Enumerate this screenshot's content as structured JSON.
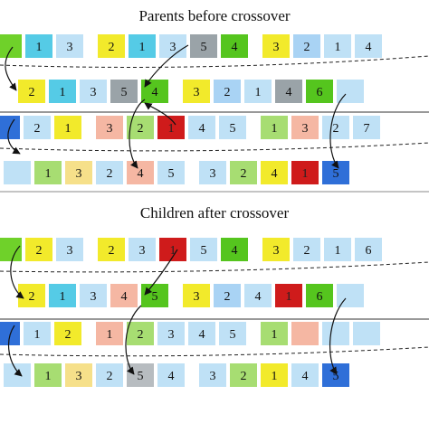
{
  "colors": {
    "1": "#55cbe6",
    "2": "#f2ea2b",
    "3": "#a9d3f4",
    "4": "#6fd12a",
    "5": "#9aa3a8",
    "6": "#75d535",
    "7": "#2e6fe0",
    "hl1": "#d61f1f",
    "hl2": "#f2b39f",
    "hl3": "#a9b1b7",
    "lightblue": "#bfe1f6",
    "lightgreen": "#a7dd72",
    "lightyellow": "#f6e08a",
    "salmon": "#f5b7a3",
    "gray": "#b7bcc0",
    "green": "#55c51e",
    "red": "#cf1b1b",
    "blue": "#2f6fd8",
    "pale": "#c9e7f7",
    "mustard": "#e2d84a"
  },
  "sections": [
    {
      "id": "parents",
      "title": "Parents before crossover",
      "rows": [
        {
          "cells": [
            {
              "label": "",
              "color": "#6fd12a"
            },
            {
              "label": "1",
              "color": "#55cbe6"
            },
            {
              "label": "3",
              "color": "#bfe1f6"
            },
            {
              "label": "",
              "color": "#ffffff"
            },
            {
              "label": "2",
              "color": "#f2ea2b"
            },
            {
              "label": "1",
              "color": "#55cbe6"
            },
            {
              "label": "3",
              "color": "#bfe1f6"
            },
            {
              "label": "5",
              "color": "#9aa3a8"
            },
            {
              "label": "4",
              "color": "#55c51e"
            },
            {
              "label": "",
              "color": "#ffffff"
            },
            {
              "label": "3",
              "color": "#f2ea2b"
            },
            {
              "label": "2",
              "color": "#a9d3f4"
            },
            {
              "label": "1",
              "color": "#bfe1f6"
            },
            {
              "label": "4",
              "color": "#bfe1f6"
            }
          ]
        },
        {
          "cells": [
            {
              "label": "2",
              "color": "#f2ea2b"
            },
            {
              "label": "1",
              "color": "#55cbe6"
            },
            {
              "label": "3",
              "color": "#bfe1f6"
            },
            {
              "label": "5",
              "color": "#9aa3a8"
            },
            {
              "label": "4",
              "color": "#55c51e"
            },
            {
              "label": "",
              "color": "#ffffff"
            },
            {
              "label": "3",
              "color": "#f2ea2b"
            },
            {
              "label": "2",
              "color": "#a9d3f4"
            },
            {
              "label": "1",
              "color": "#bfe1f6"
            },
            {
              "label": "4",
              "color": "#9aa3a8"
            },
            {
              "label": "6",
              "color": "#55c51e"
            },
            {
              "label": "",
              "color": "#bfe1f6"
            }
          ]
        },
        {
          "cells": [
            {
              "label": "",
              "color": "#2f6fd8"
            },
            {
              "label": "2",
              "color": "#bfe1f6"
            },
            {
              "label": "1",
              "color": "#f2ea2b"
            },
            {
              "label": "",
              "color": "#ffffff"
            },
            {
              "label": "3",
              "color": "#f5b7a3"
            },
            {
              "label": "2",
              "color": "#a7dd72"
            },
            {
              "label": "1",
              "color": "#cf1b1b"
            },
            {
              "label": "4",
              "color": "#bfe1f6"
            },
            {
              "label": "5",
              "color": "#bfe1f6"
            },
            {
              "label": "",
              "color": "#ffffff"
            },
            {
              "label": "1",
              "color": "#a7dd72"
            },
            {
              "label": "3",
              "color": "#f5b7a3"
            },
            {
              "label": "2",
              "color": "#bfe1f6"
            },
            {
              "label": "7",
              "color": "#bfe1f6"
            }
          ]
        },
        {
          "cells": [
            {
              "label": "",
              "color": "#bfe1f6"
            },
            {
              "label": "1",
              "color": "#a7dd72"
            },
            {
              "label": "3",
              "color": "#f6e08a"
            },
            {
              "label": "2",
              "color": "#bfe1f6"
            },
            {
              "label": "4",
              "color": "#f5b7a3"
            },
            {
              "label": "5",
              "color": "#bfe1f6"
            },
            {
              "label": "",
              "color": "#ffffff"
            },
            {
              "label": "3",
              "color": "#bfe1f6"
            },
            {
              "label": "2",
              "color": "#a7dd72"
            },
            {
              "label": "4",
              "color": "#f2ea2b"
            },
            {
              "label": "1",
              "color": "#cf1b1b"
            },
            {
              "label": "5",
              "color": "#2f6fd8"
            },
            {
              "label": "",
              "color": "#ffffff"
            }
          ]
        }
      ]
    },
    {
      "id": "children",
      "title": "Children after crossover",
      "rows": [
        {
          "cells": [
            {
              "label": "",
              "color": "#6fd12a"
            },
            {
              "label": "2",
              "color": "#f2ea2b"
            },
            {
              "label": "3",
              "color": "#bfe1f6"
            },
            {
              "label": "",
              "color": "#ffffff"
            },
            {
              "label": "2",
              "color": "#f2ea2b"
            },
            {
              "label": "3",
              "color": "#bfe1f6"
            },
            {
              "label": "1",
              "color": "#cf1b1b"
            },
            {
              "label": "5",
              "color": "#bfe1f6"
            },
            {
              "label": "4",
              "color": "#55c51e"
            },
            {
              "label": "",
              "color": "#ffffff"
            },
            {
              "label": "3",
              "color": "#f2ea2b"
            },
            {
              "label": "2",
              "color": "#bfe1f6"
            },
            {
              "label": "1",
              "color": "#bfe1f6"
            },
            {
              "label": "6",
              "color": "#bfe1f6"
            }
          ]
        },
        {
          "cells": [
            {
              "label": "2",
              "color": "#f2ea2b"
            },
            {
              "label": "1",
              "color": "#55cbe6"
            },
            {
              "label": "3",
              "color": "#bfe1f6"
            },
            {
              "label": "4",
              "color": "#f5b7a3"
            },
            {
              "label": "5",
              "color": "#55c51e"
            },
            {
              "label": "",
              "color": "#ffffff"
            },
            {
              "label": "3",
              "color": "#f2ea2b"
            },
            {
              "label": "2",
              "color": "#a9d3f4"
            },
            {
              "label": "4",
              "color": "#bfe1f6"
            },
            {
              "label": "1",
              "color": "#cf1b1b"
            },
            {
              "label": "6",
              "color": "#55c51e"
            },
            {
              "label": "",
              "color": "#bfe1f6"
            }
          ]
        },
        {
          "cells": [
            {
              "label": "",
              "color": "#2f6fd8"
            },
            {
              "label": "1",
              "color": "#bfe1f6"
            },
            {
              "label": "2",
              "color": "#f2ea2b"
            },
            {
              "label": "",
              "color": "#ffffff"
            },
            {
              "label": "1",
              "color": "#f5b7a3"
            },
            {
              "label": "2",
              "color": "#a7dd72"
            },
            {
              "label": "3",
              "color": "#bfe1f6"
            },
            {
              "label": "4",
              "color": "#bfe1f6"
            },
            {
              "label": "5",
              "color": "#bfe1f6"
            },
            {
              "label": "",
              "color": "#ffffff"
            },
            {
              "label": "1",
              "color": "#a7dd72"
            },
            {
              "label": "",
              "color": "#f5b7a3"
            },
            {
              "label": "",
              "color": "#bfe1f6"
            },
            {
              "label": "",
              "color": "#bfe1f6"
            }
          ]
        },
        {
          "cells": [
            {
              "label": "",
              "color": "#bfe1f6"
            },
            {
              "label": "1",
              "color": "#a7dd72"
            },
            {
              "label": "3",
              "color": "#f6e08a"
            },
            {
              "label": "2",
              "color": "#bfe1f6"
            },
            {
              "label": "5",
              "color": "#b7bcc0"
            },
            {
              "label": "4",
              "color": "#bfe1f6"
            },
            {
              "label": "",
              "color": "#ffffff"
            },
            {
              "label": "3",
              "color": "#bfe1f6"
            },
            {
              "label": "2",
              "color": "#a7dd72"
            },
            {
              "label": "1",
              "color": "#f2ea2b"
            },
            {
              "label": "4",
              "color": "#bfe1f6"
            },
            {
              "label": "5",
              "color": "#2f6fd8"
            },
            {
              "label": "",
              "color": "#ffffff"
            }
          ]
        }
      ]
    }
  ]
}
